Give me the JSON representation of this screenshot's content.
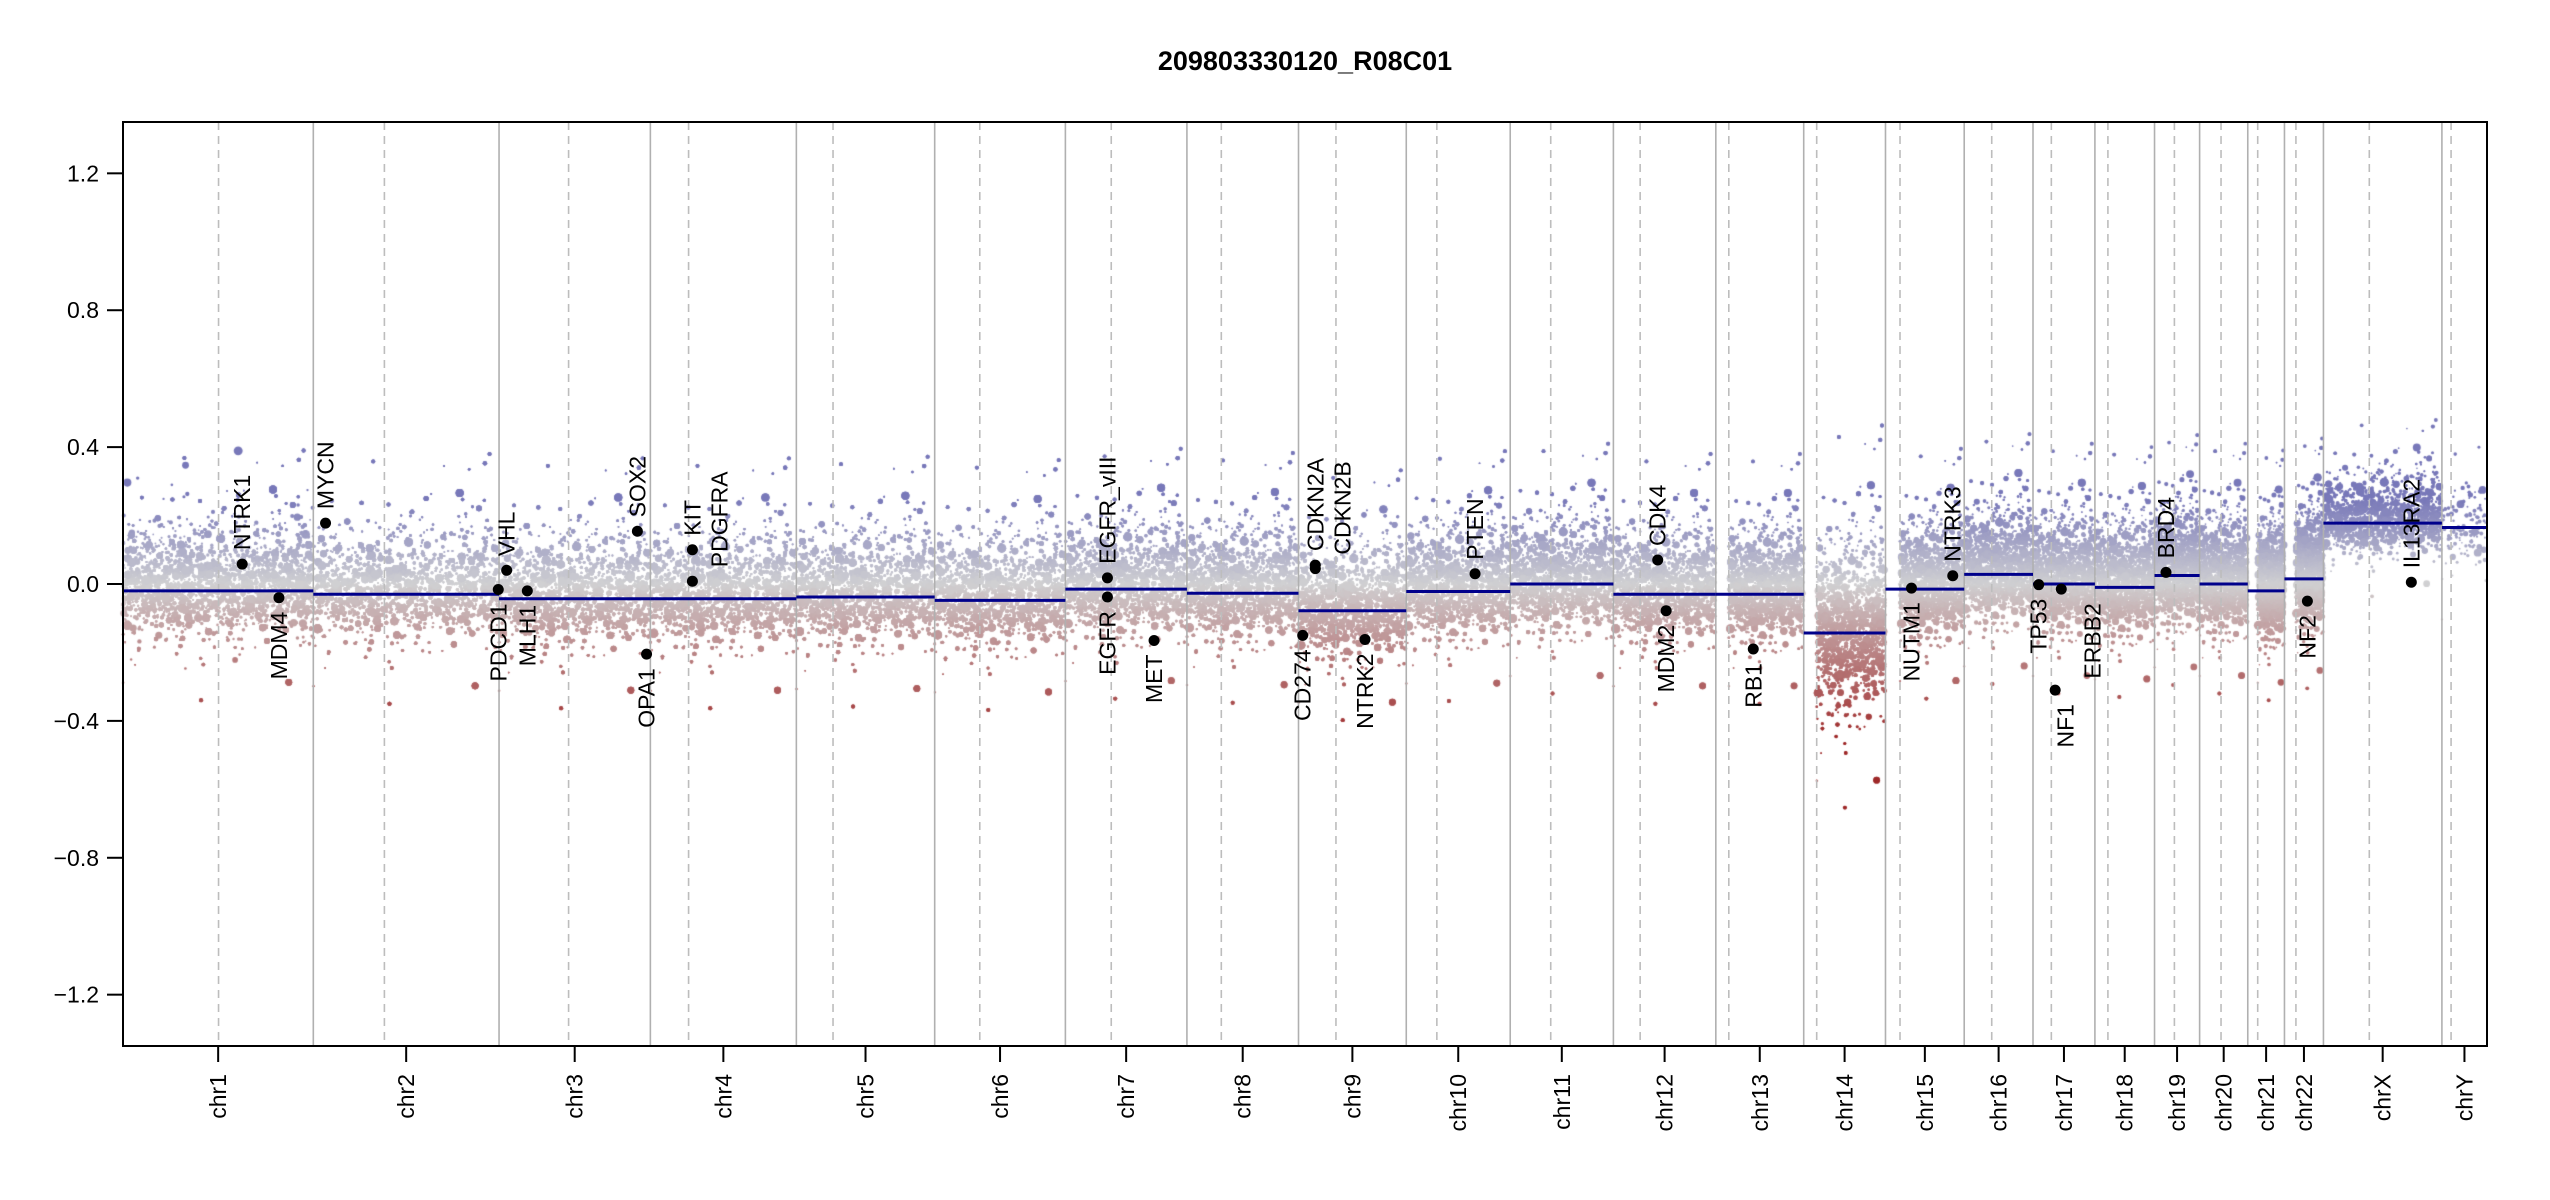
{
  "chart_data": {
    "type": "scatter",
    "title": "209803330120_R08C01",
    "xlabel": "",
    "ylabel": "",
    "ylim": [
      -1.35,
      1.35
    ],
    "yticks": [
      -1.2,
      -0.8,
      -0.4,
      0.0,
      0.4,
      0.8,
      1.2
    ],
    "ytick_labels": [
      "−1.2",
      "−0.8",
      "−0.4",
      "0.0",
      "0.4",
      "0.8",
      "1.2"
    ],
    "x_units": "Mb",
    "chromosomes": [
      {
        "name": "chr1",
        "length": 249,
        "centromere": 125,
        "segment": -0.02
      },
      {
        "name": "chr2",
        "length": 243,
        "centromere": 93,
        "segment": -0.03
      },
      {
        "name": "chr3",
        "length": 198,
        "centromere": 91,
        "segment": -0.043
      },
      {
        "name": "chr4",
        "length": 191,
        "centromere": 50,
        "segment": -0.043
      },
      {
        "name": "chr5",
        "length": 181,
        "centromere": 48,
        "segment": -0.038
      },
      {
        "name": "chr6",
        "length": 171,
        "centromere": 59,
        "segment": -0.048
      },
      {
        "name": "chr7",
        "length": 159,
        "centromere": 60,
        "segment": -0.015
      },
      {
        "name": "chr8",
        "length": 146,
        "centromere": 45,
        "segment": -0.027
      },
      {
        "name": "chr9",
        "length": 141,
        "centromere": 49,
        "segment": -0.078
      },
      {
        "name": "chr10",
        "length": 136,
        "centromere": 40,
        "segment": -0.022
      },
      {
        "name": "chr11",
        "length": 135,
        "centromere": 53,
        "segment": 0.0
      },
      {
        "name": "chr12",
        "length": 134,
        "centromere": 35,
        "segment": -0.03
      },
      {
        "name": "chr13",
        "length": 115,
        "centromere": 17,
        "segment": -0.03
      },
      {
        "name": "chr14",
        "length": 107,
        "centromere": 17,
        "segment": -0.143
      },
      {
        "name": "chr15",
        "length": 103,
        "centromere": 19,
        "segment": -0.015
      },
      {
        "name": "chr16",
        "length": 90,
        "centromere": 36,
        "segment": 0.028
      },
      {
        "name": "chr17",
        "length": 81,
        "centromere": 24,
        "segment": 0.0
      },
      {
        "name": "chr18",
        "length": 78,
        "centromere": 17,
        "segment": -0.01
      },
      {
        "name": "chr19",
        "length": 59,
        "centromere": 26,
        "segment": 0.025
      },
      {
        "name": "chr20",
        "length": 63,
        "centromere": 28,
        "segment": 0.0
      },
      {
        "name": "chr21",
        "length": 48,
        "centromere": 13,
        "segment": -0.02
      },
      {
        "name": "chr22",
        "length": 51,
        "centromere": 15,
        "segment": 0.015
      },
      {
        "name": "chrX",
        "length": 155,
        "centromere": 60,
        "segment": 0.178
      },
      {
        "name": "chrY",
        "length": 59,
        "centromere": 12,
        "segment": 0.165
      }
    ],
    "genes": [
      {
        "name": "NTRK1",
        "chr": "chr1",
        "pos": 156,
        "value": 0.058
      },
      {
        "name": "MDM4",
        "chr": "chr1",
        "pos": 204,
        "value": -0.04
      },
      {
        "name": "MYCN",
        "chr": "chr2",
        "pos": 16,
        "value": 0.178
      },
      {
        "name": "PDCD1",
        "chr": "chr2",
        "pos": 242,
        "value": -0.016
      },
      {
        "name": "VHL",
        "chr": "chr3",
        "pos": 10,
        "value": 0.04
      },
      {
        "name": "MLH1",
        "chr": "chr3",
        "pos": 37,
        "value": -0.02
      },
      {
        "name": "SOX2",
        "chr": "chr3",
        "pos": 181,
        "value": 0.154
      },
      {
        "name": "OPA1",
        "chr": "chr3",
        "pos": 193,
        "value": -0.205
      },
      {
        "name": "KIT",
        "chr": "chr4",
        "pos": 55,
        "value": 0.1
      },
      {
        "name": "PDGFRA",
        "chr": "chr4",
        "pos": 55,
        "value": 0.008
      },
      {
        "name": "EGFR_vIII",
        "chr": "chr7",
        "pos": 55,
        "value": 0.018
      },
      {
        "name": "EGFR",
        "chr": "chr7",
        "pos": 55,
        "value": -0.038
      },
      {
        "name": "MET",
        "chr": "chr7",
        "pos": 116,
        "value": -0.165
      },
      {
        "name": "CD274",
        "chr": "chr9",
        "pos": 5.5,
        "value": -0.15
      },
      {
        "name": "CDKN2A",
        "chr": "chr9",
        "pos": 22,
        "value": 0.055
      },
      {
        "name": "CDKN2B",
        "chr": "chr9",
        "pos": 22,
        "value": 0.045
      },
      {
        "name": "NTRK2",
        "chr": "chr9",
        "pos": 87,
        "value": -0.162
      },
      {
        "name": "PTEN",
        "chr": "chr10",
        "pos": 90,
        "value": 0.03
      },
      {
        "name": "CDK4",
        "chr": "chr12",
        "pos": 58,
        "value": 0.07
      },
      {
        "name": "MDM2",
        "chr": "chr12",
        "pos": 69,
        "value": -0.078
      },
      {
        "name": "RB1",
        "chr": "chr13",
        "pos": 49,
        "value": -0.19
      },
      {
        "name": "NUTM1",
        "chr": "chr15",
        "pos": 34,
        "value": -0.012
      },
      {
        "name": "NTRK3",
        "chr": "chr15",
        "pos": 88,
        "value": 0.024
      },
      {
        "name": "TP53",
        "chr": "chr17",
        "pos": 7.5,
        "value": -0.002
      },
      {
        "name": "NF1",
        "chr": "chr17",
        "pos": 29,
        "value": -0.31
      },
      {
        "name": "ERBB2",
        "chr": "chr17",
        "pos": 37,
        "value": -0.015
      },
      {
        "name": "BRD4",
        "chr": "chr19",
        "pos": 15,
        "value": 0.034
      },
      {
        "name": "NF2",
        "chr": "chr22",
        "pos": 30,
        "value": -0.05
      },
      {
        "name": "IL13RA2",
        "chr": "chrX",
        "pos": 115,
        "value": 0.005
      }
    ],
    "colors": {
      "segment": "#00008b",
      "gain": "#6f6fb8",
      "neutral": "#cfcfcf",
      "loss": "#9c1c1c",
      "boundary": "#b0b0b0",
      "centromere": "#bdbdbd"
    },
    "grid": false,
    "legend": "none"
  }
}
